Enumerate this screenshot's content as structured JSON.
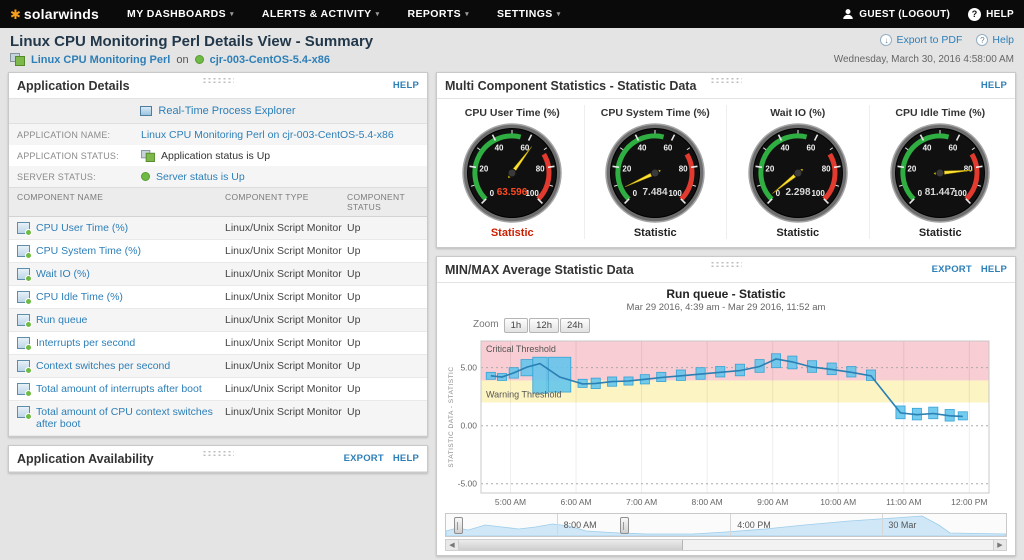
{
  "nav": {
    "brand": "solarwinds",
    "items": [
      "MY DASHBOARDS",
      "ALERTS & ACTIVITY",
      "REPORTS",
      "SETTINGS"
    ],
    "user": "GUEST (LOGOUT)",
    "help": "HELP"
  },
  "header": {
    "title": "Linux CPU Monitoring Perl Details View - Summary",
    "export_pdf": "Export to PDF",
    "help": "Help",
    "timestamp": "Wednesday, March 30, 2016 4:58:00 AM",
    "app_link": "Linux CPU Monitoring Perl",
    "on_text": "on",
    "server_link": "cjr-003-CentOS-5.4-x86"
  },
  "application_details": {
    "title": "Application Details",
    "help_link": "HELP",
    "process_explorer_link": "Real-Time Process Explorer",
    "fields": [
      {
        "label": "APPLICATION NAME:",
        "value": "Linux CPU Monitoring Perl on cjr-003-CentOS-5.4-x86",
        "link": true,
        "icon": null
      },
      {
        "label": "APPLICATION STATUS:",
        "value": "Application status is Up",
        "link": false,
        "icon": "application-icon"
      },
      {
        "label": "SERVER STATUS:",
        "value": "Server status is Up",
        "link": true,
        "icon": "status-dot-icon"
      }
    ],
    "table": {
      "headers": [
        "COMPONENT NAME",
        "COMPONENT TYPE",
        "COMPONENT STATUS"
      ],
      "rows": [
        {
          "name": "CPU User Time (%)",
          "type": "Linux/Unix Script Monitor",
          "status": "Up"
        },
        {
          "name": "CPU System Time (%)",
          "type": "Linux/Unix Script Monitor",
          "status": "Up"
        },
        {
          "name": "Wait IO (%)",
          "type": "Linux/Unix Script Monitor",
          "status": "Up"
        },
        {
          "name": "CPU Idle Time (%)",
          "type": "Linux/Unix Script Monitor",
          "status": "Up"
        },
        {
          "name": "Run queue",
          "type": "Linux/Unix Script Monitor",
          "status": "Up"
        },
        {
          "name": "Interrupts per second",
          "type": "Linux/Unix Script Monitor",
          "status": "Up"
        },
        {
          "name": "Context switches per second",
          "type": "Linux/Unix Script Monitor",
          "status": "Up"
        },
        {
          "name": "Total amount of interrupts after boot",
          "type": "Linux/Unix Script Monitor",
          "status": "Up"
        },
        {
          "name": "Total amount of CPU context switches after boot",
          "type": "Linux/Unix Script Monitor",
          "status": "Up"
        }
      ]
    }
  },
  "application_availability": {
    "title": "Application Availability",
    "export_link": "EXPORT",
    "help_link": "HELP"
  },
  "multi_component": {
    "title": "Multi Component Statistics - Statistic Data",
    "help_link": "HELP",
    "gauge_ticks": [
      0,
      20,
      40,
      60,
      80,
      100
    ],
    "gauge_min": 0,
    "gauge_max": 100,
    "gauges": [
      {
        "title": "CPU User Time (%)",
        "value": 63.596,
        "display": "63.596",
        "label": "Statistic",
        "alert": true
      },
      {
        "title": "CPU System Time (%)",
        "value": 7.484,
        "display": "7.484",
        "label": "Statistic",
        "alert": false
      },
      {
        "title": "Wait IO (%)",
        "value": 2.298,
        "display": "2.298",
        "label": "Statistic",
        "alert": false
      },
      {
        "title": "CPU Idle Time (%)",
        "value": 81.447,
        "display": "81.447",
        "label": "Statistic",
        "alert": false
      }
    ],
    "accent_green": "#2fae41",
    "accent_red": "#e23a2e",
    "needle_color": "#ffe234"
  },
  "minmax": {
    "title": "MIN/MAX Average Statistic Data",
    "export_link": "EXPORT",
    "help_link": "HELP",
    "zoom_label": "Zoom",
    "zoom_options": [
      "1h",
      "12h",
      "24h"
    ],
    "scrubber_labels": [
      "8:00 AM",
      "4:00 PM",
      "30 Mar"
    ]
  },
  "chart_data": {
    "type": "range-bar+line",
    "title": "Run queue - Statistic",
    "subtitle": "Mar 29 2016, 4:39 am - Mar 29 2016, 11:52 am",
    "ylabel": "STATISTIC DATA - STATISTIC",
    "legend_position": "none",
    "grid": true,
    "xlim": [
      4.55,
      12.3
    ],
    "ylim": [
      -5.8,
      7.3
    ],
    "y_ticks": [
      5,
      0,
      -5
    ],
    "y_tick_labels": [
      "5.00",
      "0.00",
      "-5.00"
    ],
    "x_ticks": [
      {
        "t": 5,
        "label": "5:00 AM"
      },
      {
        "t": 6,
        "label": "6:00 AM"
      },
      {
        "t": 7,
        "label": "7:00 AM"
      },
      {
        "t": 8,
        "label": "8:00 AM"
      },
      {
        "t": 9,
        "label": "9:00 AM"
      },
      {
        "t": 10,
        "label": "10:00 AM"
      },
      {
        "t": 11,
        "label": "11:00 AM"
      },
      {
        "t": 12,
        "label": "12:00 PM"
      }
    ],
    "thresholds": {
      "critical": {
        "value": 3.9,
        "label": "Critical Threshold",
        "color": "#f8cdd3"
      },
      "warning": {
        "value": 2.0,
        "label": "Warning Threshold",
        "color": "#fdf4c3"
      }
    },
    "bar_color": "#60c5ed",
    "line_color": "#2a7fb3",
    "points": [
      {
        "t": 4.7,
        "min": 4.0,
        "max": 4.6,
        "avg": 4.3
      },
      {
        "t": 4.87,
        "min": 3.9,
        "max": 4.5,
        "avg": 4.2
      },
      {
        "t": 5.05,
        "min": 4.1,
        "max": 5.0,
        "avg": 4.55
      },
      {
        "t": 5.25,
        "min": 4.3,
        "max": 5.7,
        "avg": 5.05,
        "w": 0.18
      },
      {
        "t": 5.45,
        "min": 2.8,
        "max": 5.9,
        "avg": 5.35,
        "w": 0.22
      },
      {
        "t": 5.75,
        "min": 2.9,
        "max": 5.9,
        "avg": 4.2,
        "w": 0.34
      },
      {
        "t": 6.1,
        "min": 3.3,
        "max": 4.0,
        "avg": 3.6
      },
      {
        "t": 6.3,
        "min": 3.2,
        "max": 4.1,
        "avg": 3.65
      },
      {
        "t": 6.55,
        "min": 3.4,
        "max": 4.2,
        "avg": 3.8
      },
      {
        "t": 6.8,
        "min": 3.5,
        "max": 4.2,
        "avg": 3.85
      },
      {
        "t": 7.05,
        "min": 3.6,
        "max": 4.4,
        "avg": 4.0
      },
      {
        "t": 7.3,
        "min": 3.8,
        "max": 4.6,
        "avg": 4.15
      },
      {
        "t": 7.6,
        "min": 3.9,
        "max": 4.8,
        "avg": 4.3
      },
      {
        "t": 7.9,
        "min": 4.0,
        "max": 5.0,
        "avg": 4.45
      },
      {
        "t": 8.2,
        "min": 4.2,
        "max": 5.1,
        "avg": 4.6
      },
      {
        "t": 8.5,
        "min": 4.3,
        "max": 5.3,
        "avg": 4.75
      },
      {
        "t": 8.8,
        "min": 4.6,
        "max": 5.7,
        "avg": 5.1
      },
      {
        "t": 9.05,
        "min": 5.0,
        "max": 6.2,
        "avg": 5.75
      },
      {
        "t": 9.3,
        "min": 4.9,
        "max": 6.0,
        "avg": 5.5
      },
      {
        "t": 9.6,
        "min": 4.6,
        "max": 5.6,
        "avg": 5.05
      },
      {
        "t": 9.9,
        "min": 4.4,
        "max": 5.4,
        "avg": 4.85
      },
      {
        "t": 10.2,
        "min": 4.2,
        "max": 5.1,
        "avg": 4.6
      },
      {
        "t": 10.5,
        "min": 3.9,
        "max": 4.8,
        "avg": 4.3
      },
      {
        "t": 10.95,
        "min": 0.6,
        "max": 1.7,
        "avg": 1.1
      },
      {
        "t": 11.2,
        "min": 0.5,
        "max": 1.5,
        "avg": 0.95
      },
      {
        "t": 11.45,
        "min": 0.6,
        "max": 1.6,
        "avg": 1.05
      },
      {
        "t": 11.7,
        "min": 0.4,
        "max": 1.4,
        "avg": 0.85
      },
      {
        "t": 11.9,
        "min": 0.5,
        "max": 1.2,
        "avg": 0.8
      }
    ]
  }
}
